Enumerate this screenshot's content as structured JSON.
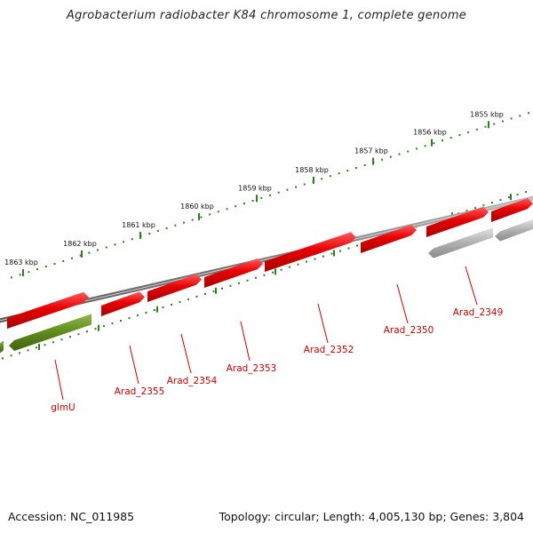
{
  "title": "Agrobacterium radiobacter K84 chromosome 1, complete genome",
  "accession": "Accession: NC_011985",
  "summary": "Topology: circular; Length: 4,005,130 bp; Genes: 3,804",
  "ticks": [
    "1855 kbp",
    "1856 kbp",
    "1857 kbp",
    "1858 kbp",
    "1859 kbp",
    "1860 kbp",
    "1861 kbp",
    "1862 kbp",
    "1863 kbp"
  ],
  "genes": [
    {
      "label": "Arad_2349",
      "strand": "-",
      "color": "#a8a8a8"
    },
    {
      "label": "Arad_2350",
      "strand": "+",
      "color": "#e40000"
    },
    {
      "label": "Arad_2352",
      "strand": "+",
      "color": "#e40000"
    },
    {
      "label": "Arad_2353",
      "strand": "+",
      "color": "#e40000"
    },
    {
      "label": "Arad_2354",
      "strand": "+",
      "color": "#e40000"
    },
    {
      "label": "Arad_2355",
      "strand": "+",
      "color": "#e40000"
    },
    {
      "label": "glmU",
      "strand": "-",
      "color": "#5e8a1c"
    }
  ],
  "colors": {
    "backbone": "#808080",
    "tick": "#2e7d1e",
    "forward_gene": "#e40000",
    "reverse_gene": "#a8a8a8",
    "rna_gene": "#5e8a1c",
    "gene_label": "#cc0000",
    "rna_label": "#cc0000"
  }
}
